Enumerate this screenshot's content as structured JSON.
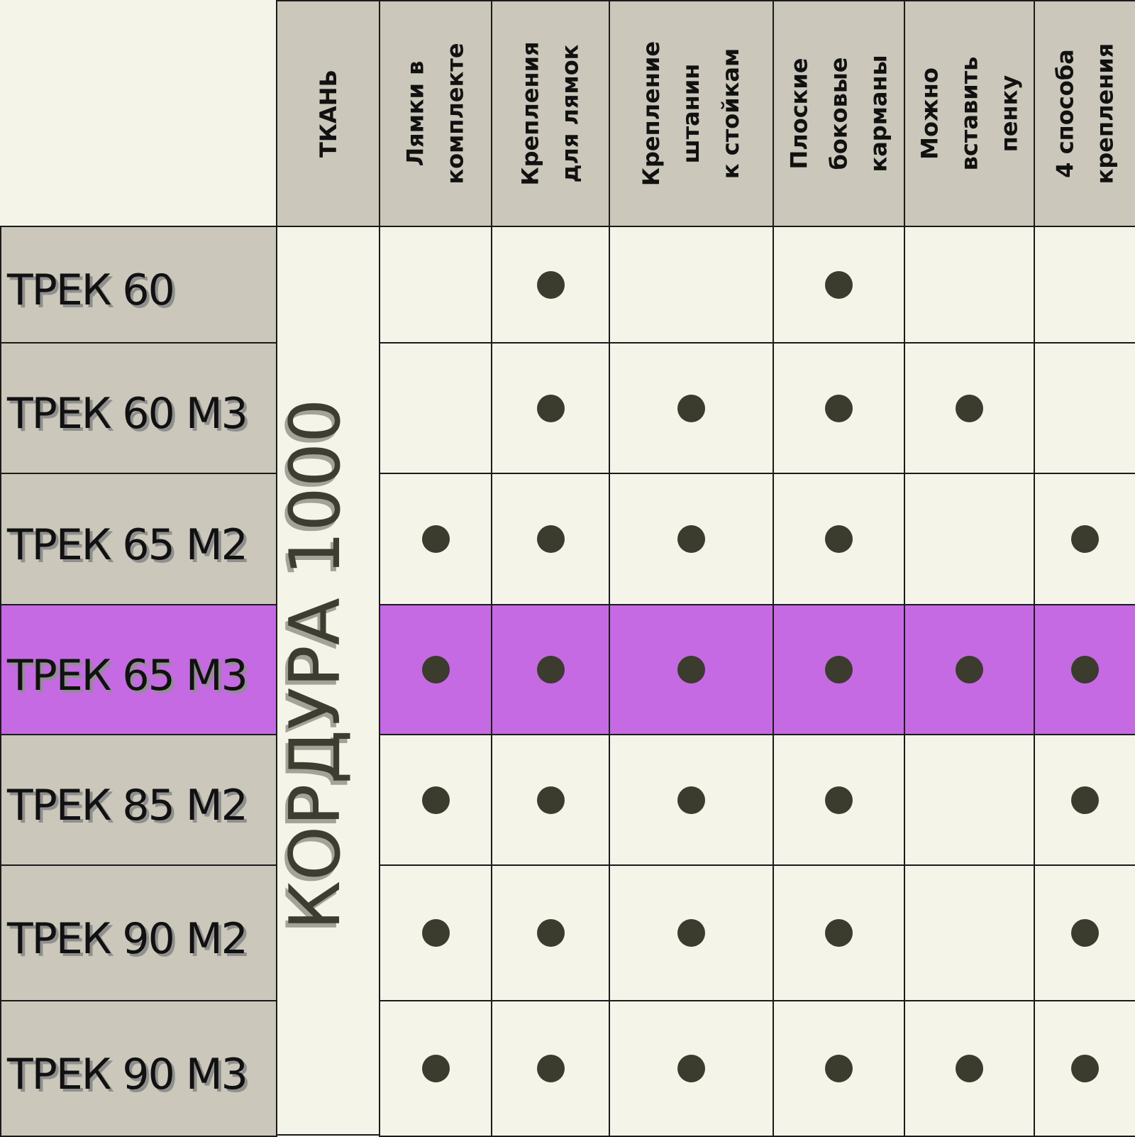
{
  "colors": {
    "header_bg": "#cbc7ba",
    "cell_bg": "#f5f4e9",
    "highlight_bg": "#c56ae3",
    "dot": "#3b3b2e",
    "border": "#1b1b1b"
  },
  "table": {
    "fabric_header": "ТКАНЬ",
    "fabric_value": "КОРДУРА 1000",
    "columns": [
      "Лямки в\nкомплекте",
      "Крепления\nдля лямок",
      "Крепление\nштанин\nк стойкам",
      "Плоские\nбоковые\nкарманы",
      "Можно\nвставить\nпенку",
      "4 способа\nкрепления"
    ],
    "highlighted_row": 3,
    "rows": [
      {
        "name": "ТРЕК 60",
        "features": [
          false,
          true,
          false,
          true,
          false,
          false
        ]
      },
      {
        "name": "ТРЕК 60 М3",
        "features": [
          false,
          true,
          true,
          true,
          true,
          false
        ]
      },
      {
        "name": "ТРЕК 65 М2",
        "features": [
          true,
          true,
          true,
          true,
          false,
          true
        ]
      },
      {
        "name": "ТРЕК 65 М3",
        "features": [
          true,
          true,
          true,
          true,
          true,
          true
        ]
      },
      {
        "name": "ТРЕК 85 М2",
        "features": [
          true,
          true,
          true,
          true,
          false,
          true
        ]
      },
      {
        "name": "ТРЕК 90 М2",
        "features": [
          true,
          true,
          true,
          true,
          false,
          true
        ]
      },
      {
        "name": "ТРЕК 90 М3",
        "features": [
          true,
          true,
          true,
          true,
          true,
          true
        ]
      }
    ]
  }
}
